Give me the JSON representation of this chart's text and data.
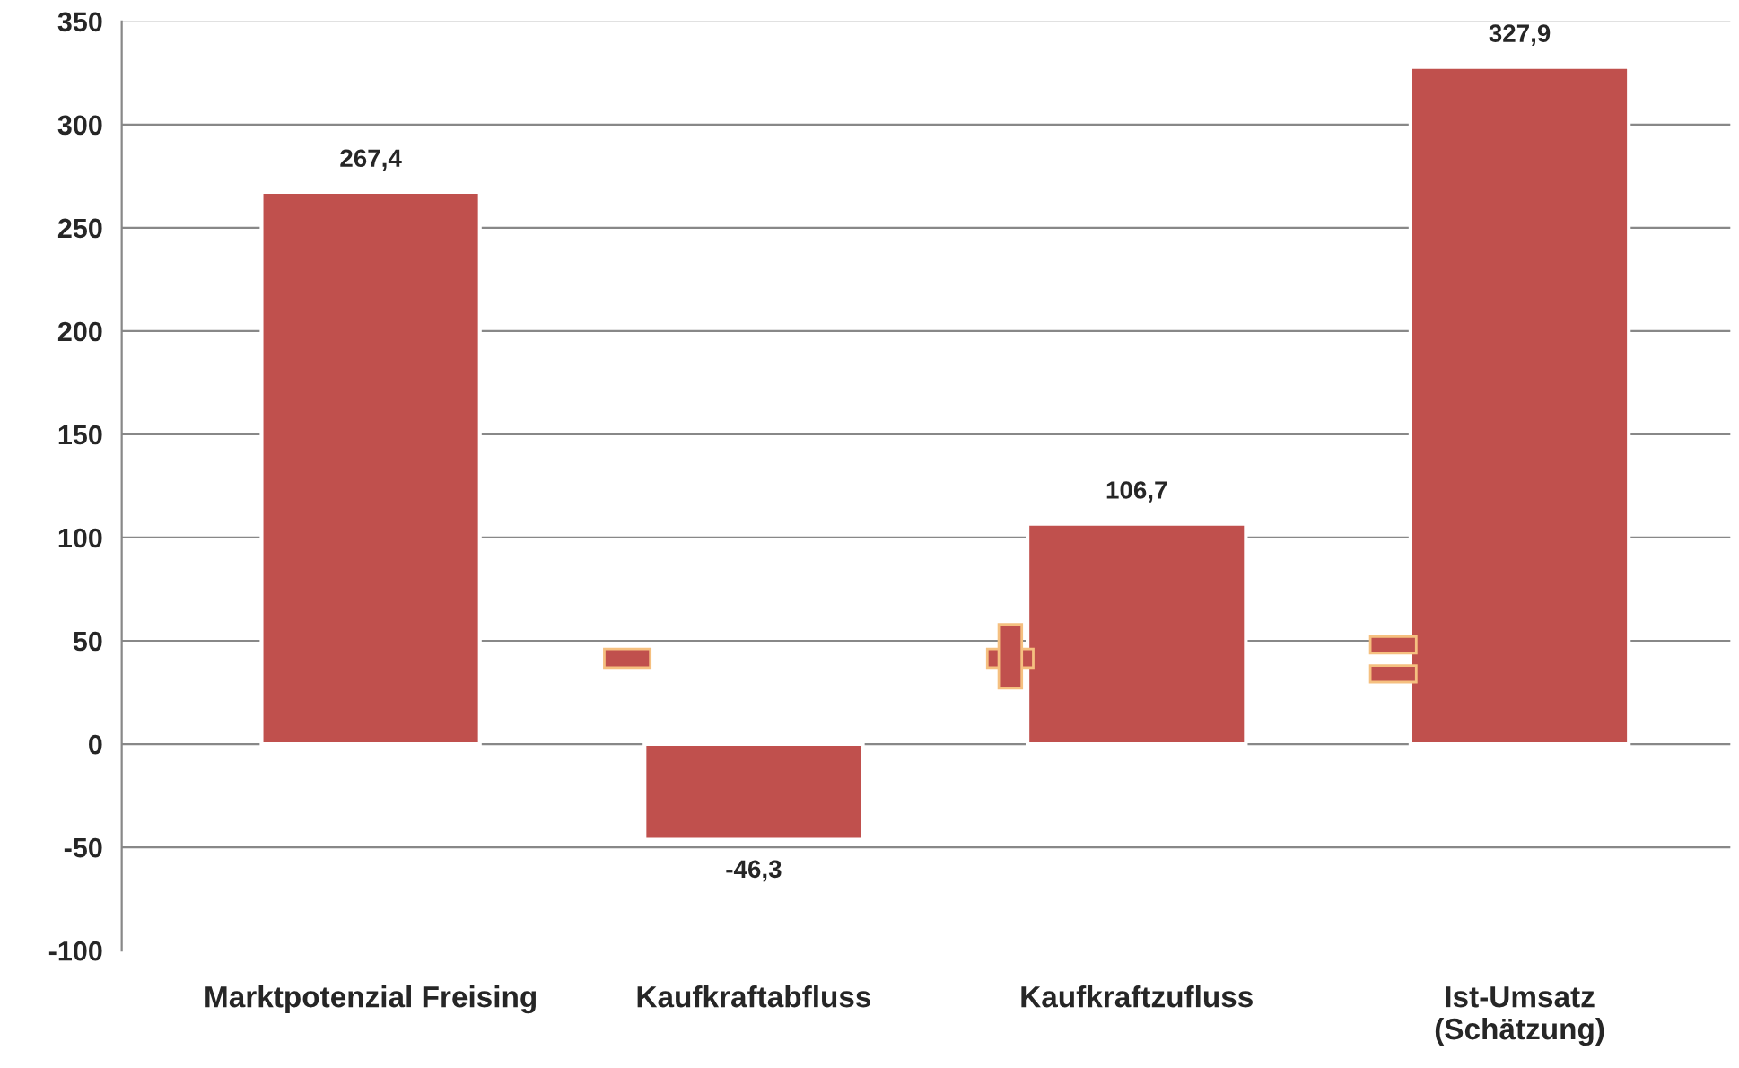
{
  "chart_data": {
    "type": "bar",
    "categories": [
      "Marktpotenzial Freising",
      "Kaufkraftabfluss",
      "Kaufkraftzufluss",
      "Ist-Umsatz\n(Schätzung)"
    ],
    "values": [
      267.4,
      -46.3,
      106.7,
      327.9
    ],
    "value_labels": [
      "267,4",
      "-46,3",
      "106,7",
      "327,9"
    ],
    "color": "#c0504d",
    "ylim": [
      -100,
      350
    ],
    "yticks": [
      -100,
      -50,
      0,
      50,
      100,
      150,
      200,
      250,
      300,
      350
    ],
    "grid": "y",
    "legend": false
  }
}
